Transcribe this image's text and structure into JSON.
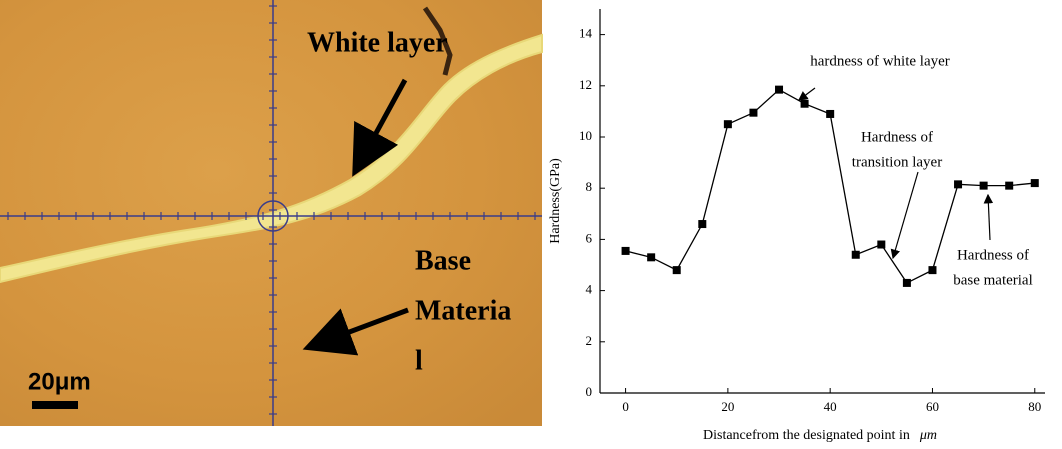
{
  "micrograph": {
    "white_layer_label": "White layer",
    "base_label": [
      "Base",
      "Materia",
      "l"
    ],
    "scale_label": "20μm"
  },
  "chart_data": {
    "type": "line",
    "xlabel": "Distancefrom the designated point in",
    "xlabel_unit": "μm",
    "ylabel": "Hardness(GPa)",
    "x": [
      0,
      5,
      10,
      15,
      20,
      25,
      30,
      35,
      40,
      45,
      50,
      55,
      60,
      65,
      70,
      75,
      80
    ],
    "series": [
      {
        "color": "#000000",
        "values": [
          5.55,
          5.3,
          4.8,
          6.6,
          10.5,
          10.95,
          11.85,
          11.3,
          10.9,
          5.4,
          5.8,
          4.3,
          4.8,
          8.15,
          8.1,
          8.1,
          8.2
        ]
      }
    ],
    "xlim": [
      -5,
      82
    ],
    "xticks": [
      0,
      20,
      40,
      60,
      80
    ],
    "ylim": [
      0,
      15
    ],
    "yticks": [
      0,
      2,
      4,
      6,
      8,
      10,
      12,
      14
    ],
    "annotations": [
      {
        "lines": [
          "hardness of white layer"
        ]
      },
      {
        "lines": [
          "Hardness of",
          "transition layer"
        ]
      },
      {
        "lines": [
          "Hardness of",
          "base material"
        ]
      }
    ]
  }
}
